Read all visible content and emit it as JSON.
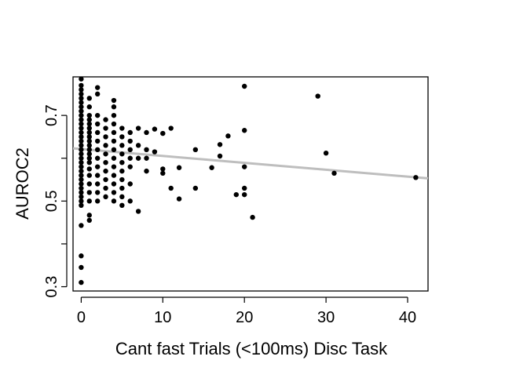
{
  "chart_data": {
    "type": "scatter",
    "title": "",
    "xlabel": "Cant fast Trials (<100ms) Disc Task",
    "ylabel": "AUROC2",
    "xlim": [
      -1,
      42.5
    ],
    "ylim": [
      0.29,
      0.79
    ],
    "x_ticks": [
      0,
      10,
      20,
      30,
      40
    ],
    "y_ticks": [
      0.3,
      0.5,
      0.7
    ],
    "x_tick_labels": [
      "0",
      "10",
      "20",
      "30",
      "40"
    ],
    "y_tick_labels": [
      "0.3",
      "0.5",
      "0.7"
    ],
    "point_color": "#000000",
    "fit_line_color": "#bebebe",
    "fit_line": {
      "x": [
        -1,
        42.5
      ],
      "y": [
        0.623,
        0.553
      ]
    },
    "points": [
      [
        0,
        0.31
      ],
      [
        0,
        0.345
      ],
      [
        0,
        0.372
      ],
      [
        0,
        0.443
      ],
      [
        0,
        0.49
      ],
      [
        0,
        0.5
      ],
      [
        0,
        0.51
      ],
      [
        0,
        0.52
      ],
      [
        0,
        0.53
      ],
      [
        0,
        0.54
      ],
      [
        0,
        0.55
      ],
      [
        0,
        0.56
      ],
      [
        0,
        0.57
      ],
      [
        0,
        0.58
      ],
      [
        0,
        0.59
      ],
      [
        0,
        0.6
      ],
      [
        0,
        0.61
      ],
      [
        0,
        0.62
      ],
      [
        0,
        0.63
      ],
      [
        0,
        0.64
      ],
      [
        0,
        0.65
      ],
      [
        0,
        0.66
      ],
      [
        0,
        0.67
      ],
      [
        0,
        0.68
      ],
      [
        0,
        0.69
      ],
      [
        0,
        0.7
      ],
      [
        0,
        0.71
      ],
      [
        0,
        0.72
      ],
      [
        0,
        0.73
      ],
      [
        0,
        0.74
      ],
      [
        0,
        0.75
      ],
      [
        0,
        0.76
      ],
      [
        0,
        0.77
      ],
      [
        0,
        0.785
      ],
      [
        1,
        0.455
      ],
      [
        1,
        0.467
      ],
      [
        1,
        0.5
      ],
      [
        1,
        0.52
      ],
      [
        1,
        0.54
      ],
      [
        1,
        0.56
      ],
      [
        1,
        0.575
      ],
      [
        1,
        0.59
      ],
      [
        1,
        0.6
      ],
      [
        1,
        0.61
      ],
      [
        1,
        0.62
      ],
      [
        1,
        0.63
      ],
      [
        1,
        0.64
      ],
      [
        1,
        0.65
      ],
      [
        1,
        0.66
      ],
      [
        1,
        0.67
      ],
      [
        1,
        0.68
      ],
      [
        1,
        0.69
      ],
      [
        1,
        0.7
      ],
      [
        1,
        0.72
      ],
      [
        1,
        0.74
      ],
      [
        2,
        0.5
      ],
      [
        2,
        0.52
      ],
      [
        2,
        0.54
      ],
      [
        2,
        0.56
      ],
      [
        2,
        0.58
      ],
      [
        2,
        0.6
      ],
      [
        2,
        0.62
      ],
      [
        2,
        0.64
      ],
      [
        2,
        0.66
      ],
      [
        2,
        0.68
      ],
      [
        2,
        0.7
      ],
      [
        2,
        0.75
      ],
      [
        2,
        0.765
      ],
      [
        3,
        0.51
      ],
      [
        3,
        0.53
      ],
      [
        3,
        0.55
      ],
      [
        3,
        0.57
      ],
      [
        3,
        0.59
      ],
      [
        3,
        0.61
      ],
      [
        3,
        0.63
      ],
      [
        3,
        0.65
      ],
      [
        3,
        0.67
      ],
      [
        3,
        0.69
      ],
      [
        4,
        0.5
      ],
      [
        4,
        0.52
      ],
      [
        4,
        0.54
      ],
      [
        4,
        0.56
      ],
      [
        4,
        0.58
      ],
      [
        4,
        0.6
      ],
      [
        4,
        0.62
      ],
      [
        4,
        0.64
      ],
      [
        4,
        0.66
      ],
      [
        4,
        0.68
      ],
      [
        4,
        0.7
      ],
      [
        4,
        0.72
      ],
      [
        4,
        0.735
      ],
      [
        5,
        0.49
      ],
      [
        5,
        0.51
      ],
      [
        5,
        0.53
      ],
      [
        5,
        0.55
      ],
      [
        5,
        0.57
      ],
      [
        5,
        0.59
      ],
      [
        5,
        0.61
      ],
      [
        5,
        0.63
      ],
      [
        5,
        0.65
      ],
      [
        5,
        0.67
      ],
      [
        6,
        0.5
      ],
      [
        6,
        0.54
      ],
      [
        6,
        0.58
      ],
      [
        6,
        0.6
      ],
      [
        6,
        0.62
      ],
      [
        6,
        0.64
      ],
      [
        6,
        0.66
      ],
      [
        7,
        0.476
      ],
      [
        7,
        0.6
      ],
      [
        7,
        0.63
      ],
      [
        7,
        0.67
      ],
      [
        8,
        0.57
      ],
      [
        8,
        0.6
      ],
      [
        8,
        0.62
      ],
      [
        8,
        0.66
      ],
      [
        9,
        0.615
      ],
      [
        9,
        0.668
      ],
      [
        10,
        0.565
      ],
      [
        10,
        0.575
      ],
      [
        10,
        0.658
      ],
      [
        11,
        0.53
      ],
      [
        11,
        0.67
      ],
      [
        12,
        0.505
      ],
      [
        12,
        0.578
      ],
      [
        14,
        0.53
      ],
      [
        14,
        0.62
      ],
      [
        16,
        0.578
      ],
      [
        17,
        0.605
      ],
      [
        17,
        0.632
      ],
      [
        18,
        0.652
      ],
      [
        19,
        0.515
      ],
      [
        20,
        0.515
      ],
      [
        20,
        0.53
      ],
      [
        20,
        0.58
      ],
      [
        20,
        0.665
      ],
      [
        20,
        0.768
      ],
      [
        21,
        0.462
      ],
      [
        29,
        0.745
      ],
      [
        30,
        0.612
      ],
      [
        31,
        0.565
      ],
      [
        41,
        0.555
      ]
    ]
  }
}
